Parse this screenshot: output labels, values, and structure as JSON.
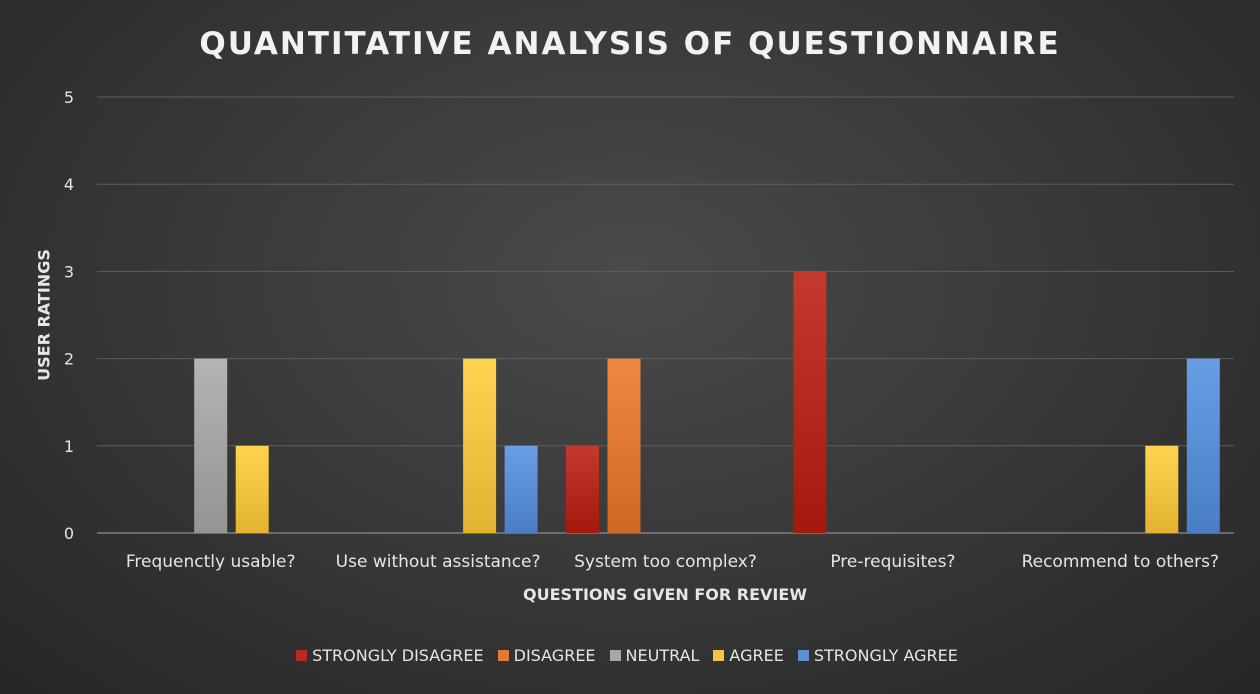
{
  "chart_data": {
    "type": "bar",
    "title": "QUANTITATIVE ANALYSIS OF QUESTIONNAIRE",
    "xlabel": "QUESTIONS GIVEN FOR REVIEW",
    "ylabel": "USER RATINGS",
    "categories": [
      "Frequenctly usable?",
      "Use without assistance?",
      "System too complex?",
      "Pre-requisites?",
      "Recommend to others?"
    ],
    "ylim": [
      0,
      5
    ],
    "yticks": [
      "0",
      "1",
      "2",
      "3",
      "4",
      "5"
    ],
    "grid": true,
    "legend_position": "bottom",
    "series": [
      {
        "name": "STRONGLY DISAGREE",
        "color": "#b52b1f",
        "values": [
          0,
          0,
          1,
          3,
          0
        ]
      },
      {
        "name": "DISAGREE",
        "color": "#e07a35",
        "values": [
          0,
          0,
          2,
          0,
          0
        ]
      },
      {
        "name": "NEUTRAL",
        "color": "#a6a6a6",
        "values": [
          2,
          0,
          0,
          0,
          0
        ]
      },
      {
        "name": "AGREE",
        "color": "#f4c542",
        "values": [
          1,
          2,
          0,
          0,
          1
        ]
      },
      {
        "name": "STRONGLY AGREE",
        "color": "#5b8fd6",
        "values": [
          0,
          1,
          0,
          0,
          2
        ]
      }
    ]
  }
}
